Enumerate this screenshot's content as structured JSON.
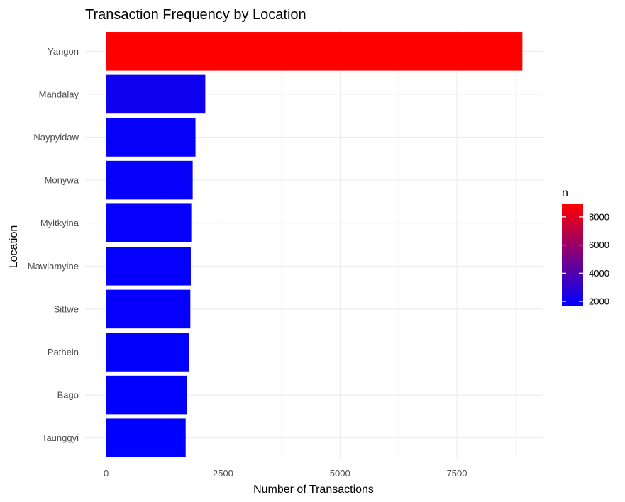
{
  "chart_data": {
    "type": "bar",
    "orientation": "horizontal",
    "title": "Transaction Frequency by Location",
    "xlabel": "Number of Transactions",
    "ylabel": "Location",
    "categories": [
      "Yangon",
      "Mandalay",
      "Naypyidaw",
      "Monywa",
      "Myitkyina",
      "Mawlamyine",
      "Sittwe",
      "Pathein",
      "Bago",
      "Taunggyi"
    ],
    "values": [
      8900,
      2120,
      1910,
      1850,
      1820,
      1810,
      1800,
      1770,
      1720,
      1700
    ],
    "xlim": [
      -450,
      9350
    ],
    "xticks": [
      0,
      2500,
      5000,
      7500
    ],
    "xtick_labels": [
      "0",
      "2500",
      "5000",
      "7500"
    ],
    "grid": true,
    "legend": {
      "title": "n",
      "placement": "right",
      "min": 1700,
      "max": 8900,
      "low_color": "#0000FF",
      "high_color": "#FF0000",
      "ticks": [
        2000,
        4000,
        6000,
        8000
      ],
      "tick_labels": [
        "2000",
        "4000",
        "6000",
        "8000"
      ]
    }
  }
}
